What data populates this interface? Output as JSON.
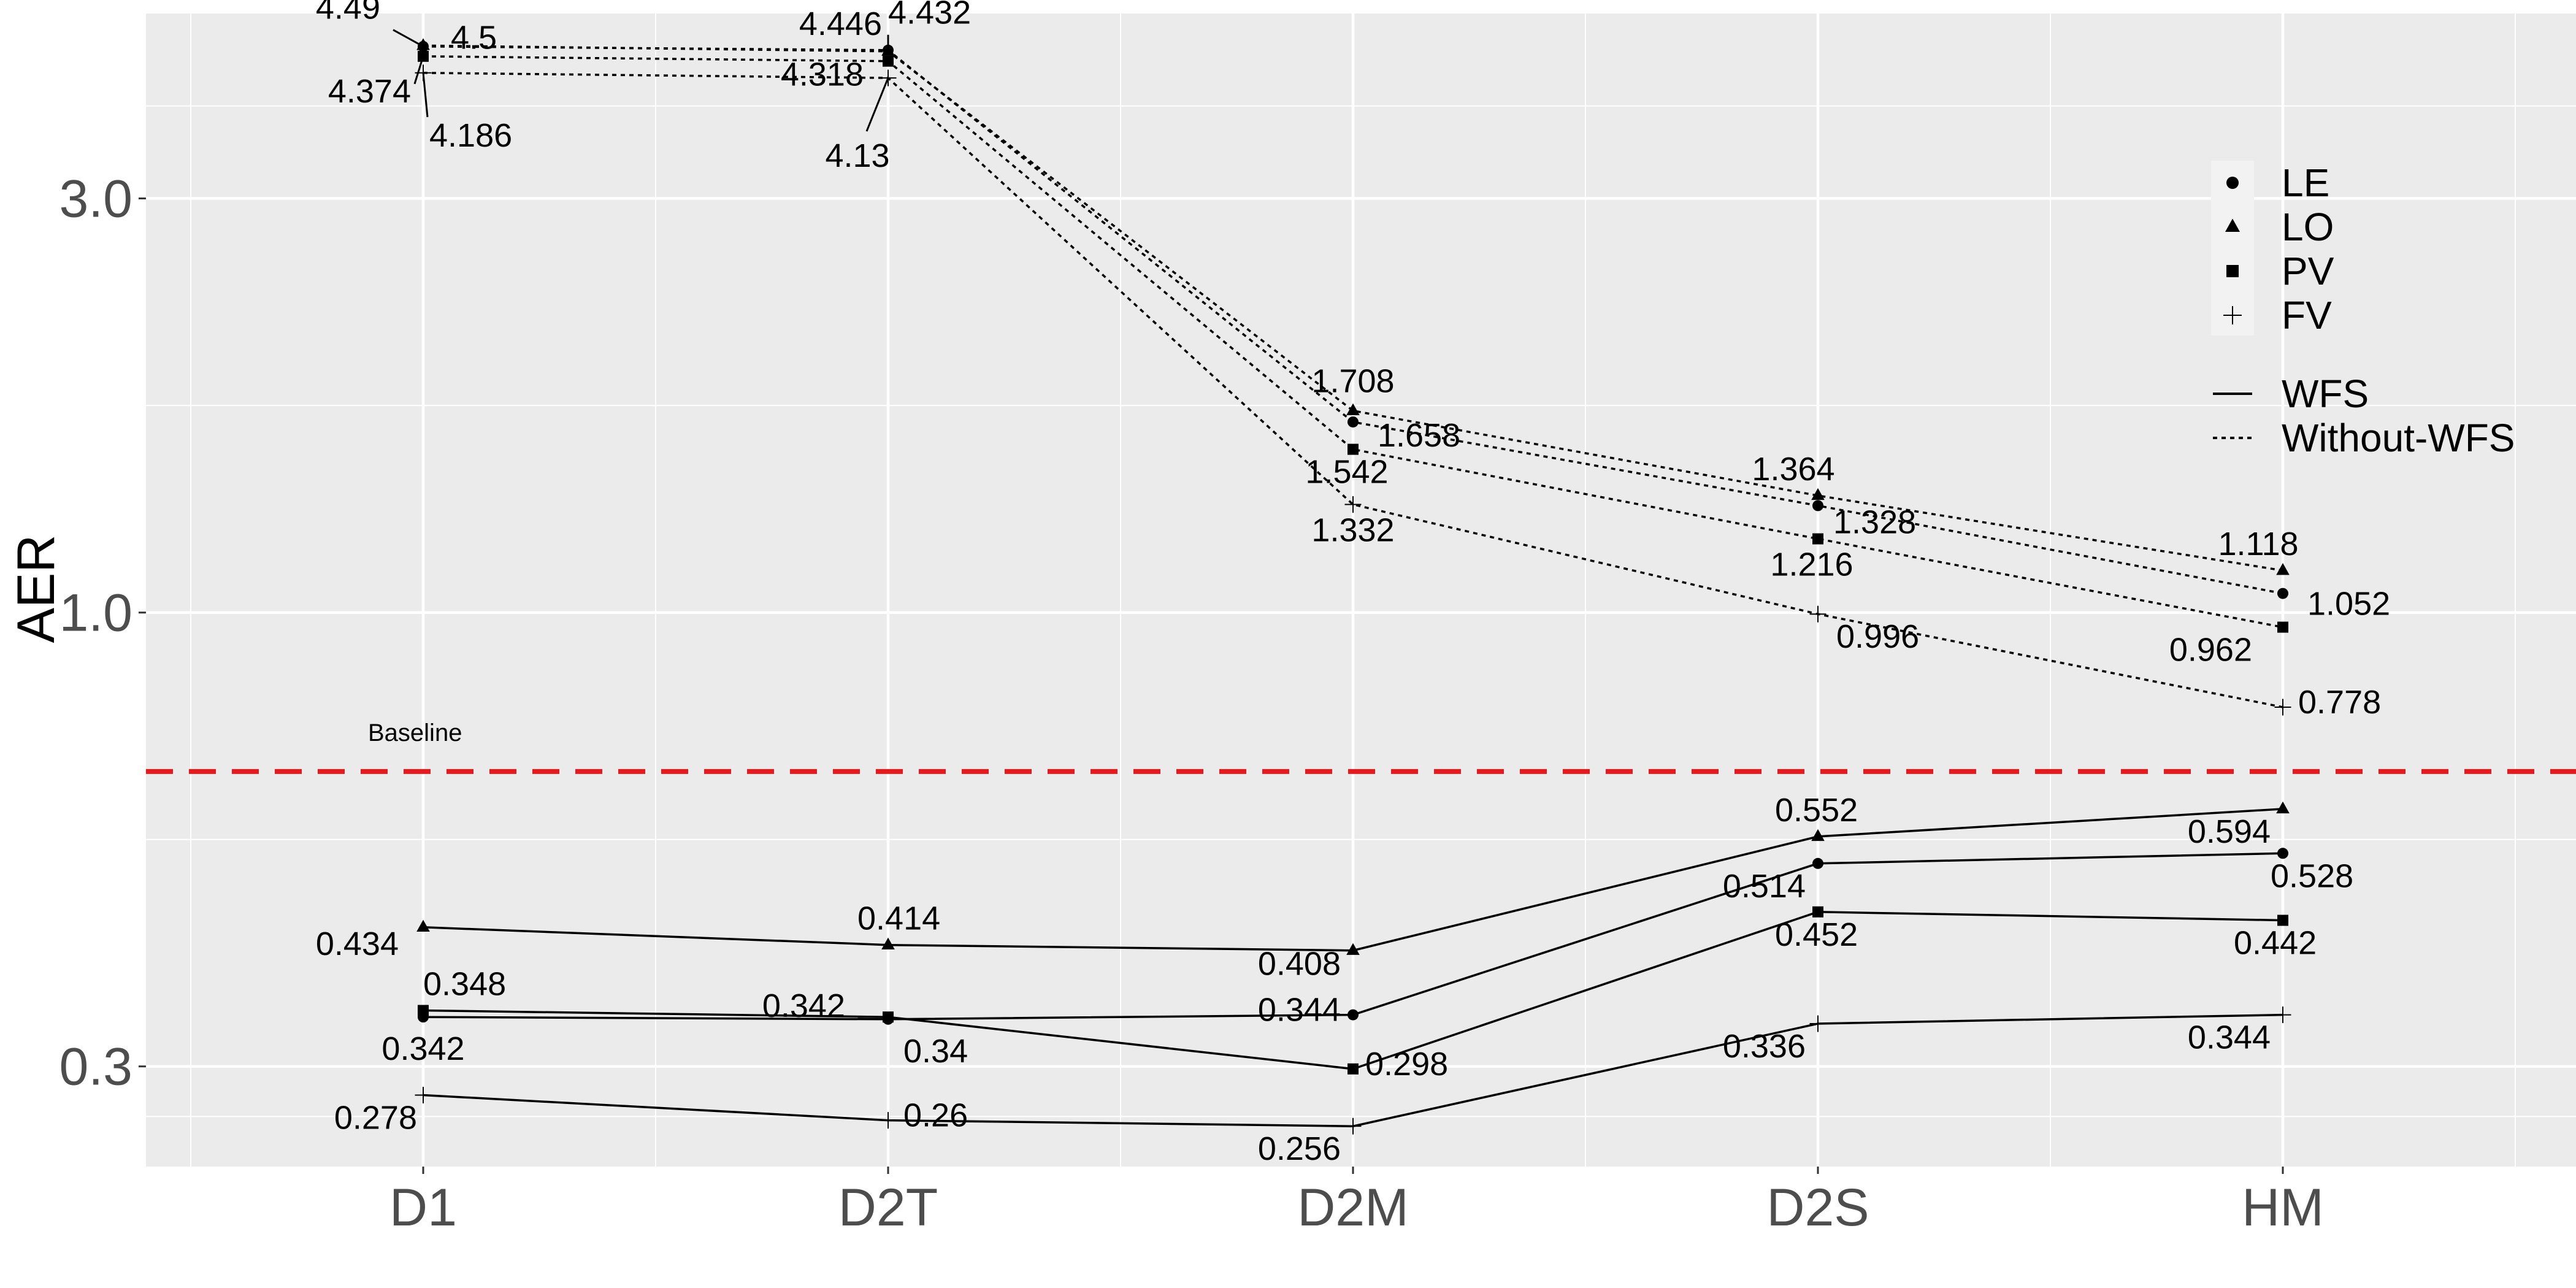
{
  "chart_data": {
    "type": "line",
    "ylabel": "AER",
    "y_scale": "log",
    "ylim": [
      0.23,
      4.9
    ],
    "yticks": [
      "0.3",
      "1.0",
      "3.0"
    ],
    "ytick_values": [
      0.3,
      1.0,
      3.0
    ],
    "categories": [
      "D1",
      "D2T",
      "D2M",
      "D2S",
      "HM"
    ],
    "baseline": {
      "value": 0.656,
      "label": "Baseline",
      "color": "#e41a1c"
    },
    "legend": {
      "placement": "top-right",
      "shapes": [
        {
          "name": "LE",
          "symbol": "circle"
        },
        {
          "name": "LO",
          "symbol": "triangle"
        },
        {
          "name": "PV",
          "symbol": "square"
        },
        {
          "name": "FV",
          "symbol": "plus"
        }
      ],
      "linetypes": [
        {
          "name": "WFS",
          "dash": "solid"
        },
        {
          "name": "Without-WFS",
          "dash": "dotted"
        }
      ]
    },
    "series": [
      {
        "name": "LE",
        "linetype": "Without-WFS",
        "values": [
          4.49,
          4.446,
          1.658,
          1.328,
          1.052
        ]
      },
      {
        "name": "LO",
        "linetype": "Without-WFS",
        "values": [
          4.5,
          4.432,
          1.708,
          1.364,
          1.118
        ]
      },
      {
        "name": "PV",
        "linetype": "Without-WFS",
        "values": [
          4.374,
          4.318,
          1.542,
          1.216,
          0.962
        ]
      },
      {
        "name": "FV",
        "linetype": "Without-WFS",
        "values": [
          4.186,
          4.13,
          1.332,
          0.996,
          0.778
        ]
      },
      {
        "name": "LE",
        "linetype": "WFS",
        "values": [
          0.342,
          0.34,
          0.344,
          0.514,
          0.528
        ]
      },
      {
        "name": "LO",
        "linetype": "WFS",
        "values": [
          0.434,
          0.414,
          0.408,
          0.552,
          0.594
        ]
      },
      {
        "name": "PV",
        "linetype": "WFS",
        "values": [
          0.348,
          0.342,
          0.298,
          0.452,
          0.442
        ]
      },
      {
        "name": "FV",
        "linetype": "WFS",
        "values": [
          0.278,
          0.26,
          0.256,
          0.336,
          0.344
        ]
      }
    ],
    "grid": true
  }
}
